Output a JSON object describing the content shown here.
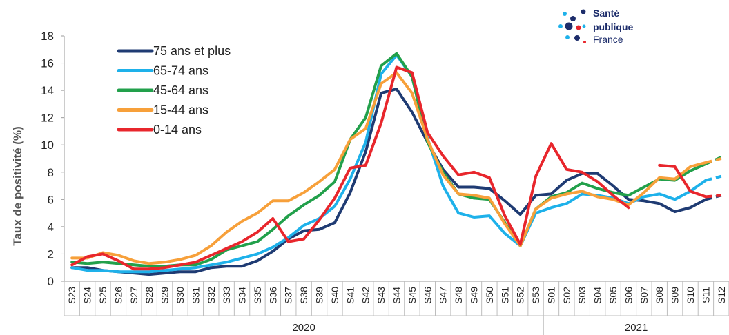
{
  "logo": {
    "line1": "Santé",
    "line2": "publique",
    "line3": "France"
  },
  "chart_data": {
    "type": "line",
    "ylabel": "Taux de positivité  (%)",
    "xlabel": "",
    "ylim": [
      0,
      18
    ],
    "yticks": [
      0,
      2,
      4,
      6,
      8,
      10,
      12,
      14,
      16,
      18
    ],
    "grid": false,
    "legend_position": "top-left",
    "categories": [
      "S23",
      "S24",
      "S25",
      "S26",
      "S27",
      "S28",
      "S29",
      "S30",
      "S31",
      "S32",
      "S33",
      "S34",
      "S35",
      "S36",
      "S37",
      "S38",
      "S39",
      "S40",
      "S41",
      "S42",
      "S43",
      "S44",
      "S45",
      "S46",
      "S47",
      "S48",
      "S49",
      "S50",
      "S51",
      "S52",
      "S53",
      "S01",
      "S02",
      "S03",
      "S04",
      "S05",
      "S06",
      "S07",
      "S08",
      "S09",
      "S10",
      "S11",
      "S12"
    ],
    "year_groups": [
      {
        "label": "2020",
        "start": 0,
        "end": 30
      },
      {
        "label": "2021",
        "start": 31,
        "end": 42
      }
    ],
    "series": [
      {
        "name": "75 ans et plus",
        "color": "#1f3b73",
        "values": [
          1.0,
          1.0,
          0.8,
          0.7,
          0.6,
          0.5,
          0.6,
          0.7,
          0.7,
          1.0,
          1.1,
          1.1,
          1.5,
          2.2,
          3.1,
          3.7,
          3.8,
          4.3,
          6.5,
          9.5,
          13.8,
          14.1,
          12.4,
          10.2,
          8.2,
          6.9,
          6.9,
          6.8,
          5.9,
          4.9,
          6.3,
          6.4,
          7.4,
          7.9,
          7.9,
          7.0,
          6.0,
          5.9,
          5.7,
          5.1,
          5.4,
          6.0,
          6.3
        ]
      },
      {
        "name": "65-74 ans",
        "color": "#1eb1ea",
        "values": [
          1.0,
          0.8,
          0.8,
          0.7,
          0.7,
          0.7,
          0.8,
          0.9,
          1.0,
          1.2,
          1.4,
          1.7,
          2.0,
          2.5,
          3.2,
          4.1,
          4.6,
          5.5,
          7.5,
          10.2,
          15.2,
          16.6,
          15.0,
          10.5,
          7.0,
          5.0,
          4.7,
          4.8,
          3.5,
          2.6,
          5.0,
          5.4,
          5.7,
          6.4,
          6.3,
          6.1,
          5.7,
          6.2,
          6.4,
          6.0,
          6.6,
          7.4,
          7.7
        ]
      },
      {
        "name": "45-64 ans",
        "color": "#22a04b",
        "values": [
          1.4,
          1.3,
          1.4,
          1.3,
          1.2,
          1.1,
          1.1,
          1.2,
          1.2,
          1.6,
          2.3,
          2.6,
          2.9,
          3.8,
          4.8,
          5.6,
          6.3,
          7.3,
          10.4,
          12.0,
          15.8,
          16.7,
          15.0,
          10.2,
          8.0,
          6.4,
          6.1,
          6.0,
          4.3,
          2.6,
          5.3,
          6.2,
          6.5,
          7.2,
          6.8,
          6.5,
          6.3,
          6.9,
          7.5,
          7.4,
          8.1,
          8.6,
          9.1
        ]
      },
      {
        "name": "15-44 ans",
        "color": "#f7a03a",
        "values": [
          1.7,
          1.7,
          2.1,
          1.9,
          1.5,
          1.3,
          1.4,
          1.6,
          1.9,
          2.6,
          3.6,
          4.4,
          5.0,
          5.9,
          5.9,
          6.5,
          7.3,
          8.2,
          10.4,
          11.2,
          14.5,
          15.3,
          13.8,
          10.4,
          7.8,
          6.4,
          6.3,
          6.1,
          4.2,
          2.6,
          5.3,
          6.1,
          6.4,
          6.6,
          6.2,
          6.0,
          5.6,
          6.5,
          7.6,
          7.5,
          8.4,
          8.7,
          9.0
        ]
      },
      {
        "name": "0-14 ans",
        "color": "#e8262c",
        "values": [
          1.2,
          1.8,
          2.0,
          1.5,
          0.9,
          0.9,
          1.0,
          1.2,
          1.4,
          1.9,
          2.4,
          2.9,
          3.6,
          4.6,
          2.9,
          3.1,
          4.5,
          6.1,
          8.3,
          8.5,
          11.6,
          15.7,
          15.3,
          10.9,
          9.2,
          7.8,
          8.0,
          7.6,
          4.8,
          2.7,
          7.7,
          10.1,
          8.2,
          8.0,
          7.3,
          6.3,
          5.4,
          null,
          8.5,
          8.4,
          6.6,
          6.2,
          6.3
        ]
      }
    ]
  }
}
